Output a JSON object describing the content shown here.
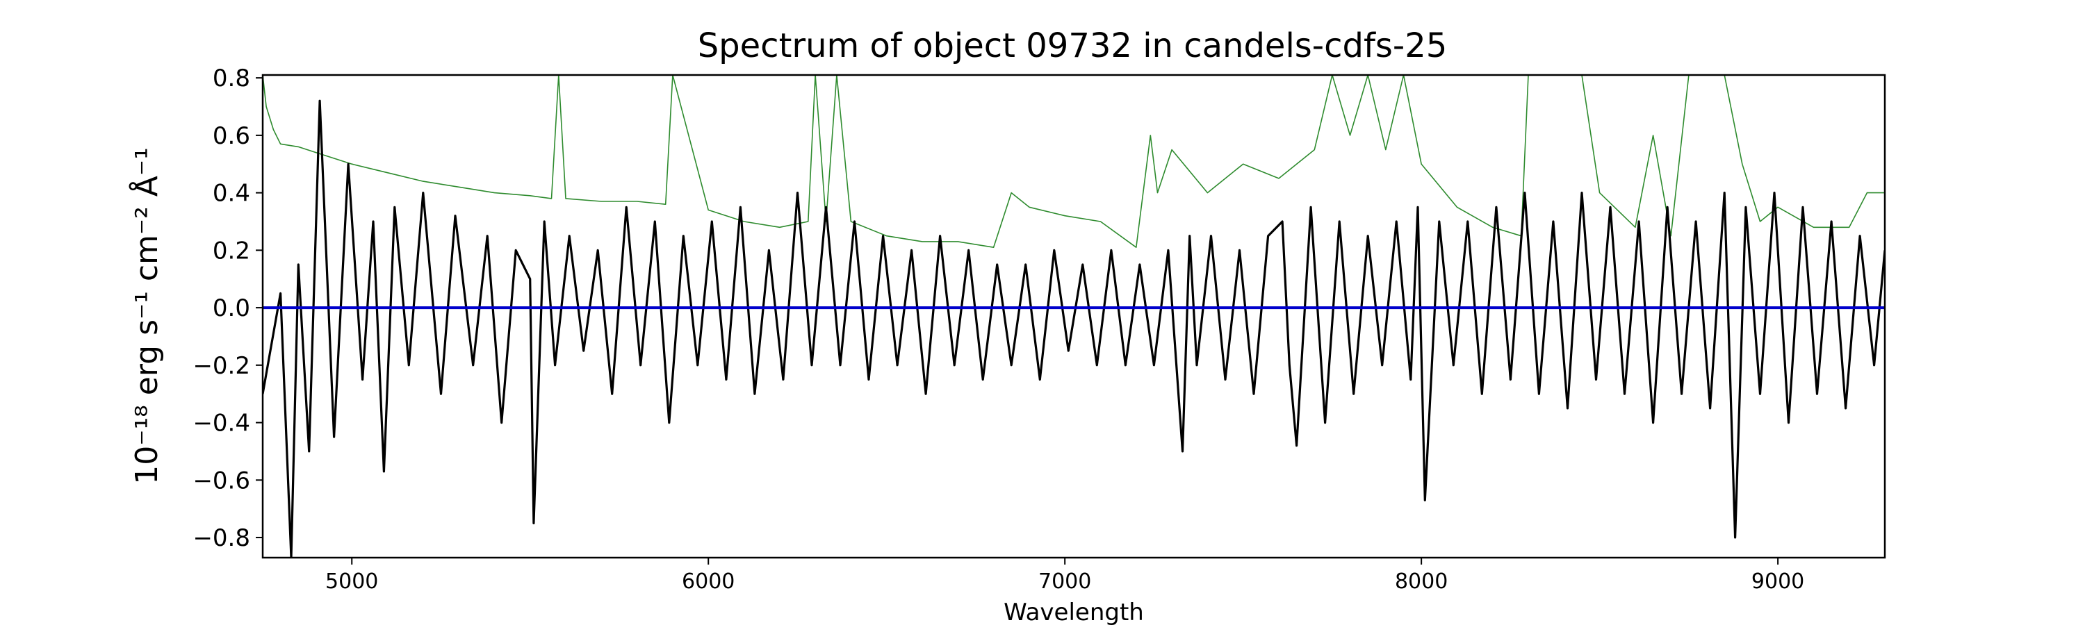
{
  "chart_data": {
    "type": "line",
    "title": "Spectrum of object 09732 in candels-cdfs-25",
    "xlabel": "Wavelength",
    "ylabel": "10⁻¹⁸ erg s⁻¹ cm⁻² Å⁻¹",
    "xlim": [
      4750,
      9300
    ],
    "ylim": [
      -0.87,
      0.81
    ],
    "xticks": [
      5000,
      6000,
      7000,
      8000,
      9000
    ],
    "yticks": [
      -0.8,
      -0.6,
      -0.4,
      -0.2,
      0.0,
      0.2,
      0.4,
      0.6,
      0.8
    ],
    "yticklabels": [
      "−0.8",
      "−0.6",
      "−0.4",
      "−0.2",
      "0.0",
      "0.2",
      "0.4",
      "0.6",
      "0.8"
    ],
    "grid": false,
    "legend": "none",
    "colors": {
      "flux": "#000000",
      "error": "#2e8b2e",
      "zero": "#0000cc"
    },
    "series": [
      {
        "role": "flux",
        "x": [
          4750,
          4800,
          4830,
          4850,
          4880,
          4910,
          4950,
          4990,
          5030,
          5060,
          5090,
          5120,
          5160,
          5200,
          5250,
          5290,
          5340,
          5380,
          5420,
          5460,
          5500,
          5510,
          5540,
          5570,
          5610,
          5650,
          5690,
          5730,
          5770,
          5810,
          5850,
          5890,
          5930,
          5970,
          6010,
          6050,
          6090,
          6130,
          6170,
          6210,
          6250,
          6290,
          6330,
          6370,
          6410,
          6450,
          6490,
          6530,
          6570,
          6610,
          6650,
          6690,
          6730,
          6770,
          6810,
          6850,
          6890,
          6930,
          6970,
          7010,
          7050,
          7090,
          7130,
          7170,
          7210,
          7250,
          7290,
          7330,
          7350,
          7370,
          7410,
          7450,
          7490,
          7530,
          7570,
          7610,
          7630,
          7650,
          7690,
          7730,
          7770,
          7810,
          7850,
          7890,
          7930,
          7970,
          7990,
          8010,
          8050,
          8090,
          8130,
          8170,
          8210,
          8250,
          8290,
          8330,
          8370,
          8410,
          8450,
          8490,
          8530,
          8570,
          8610,
          8650,
          8690,
          8730,
          8770,
          8810,
          8850,
          8880,
          8910,
          8950,
          8990,
          9030,
          9070,
          9110,
          9150,
          9190,
          9230,
          9270,
          9300
        ],
        "y": [
          -0.3,
          0.05,
          -0.87,
          0.15,
          -0.5,
          0.72,
          -0.45,
          0.5,
          -0.25,
          0.3,
          -0.57,
          0.35,
          -0.2,
          0.4,
          -0.3,
          0.32,
          -0.2,
          0.25,
          -0.4,
          0.2,
          0.1,
          -0.75,
          0.3,
          -0.2,
          0.25,
          -0.15,
          0.2,
          -0.3,
          0.35,
          -0.2,
          0.3,
          -0.4,
          0.25,
          -0.2,
          0.3,
          -0.25,
          0.35,
          -0.3,
          0.2,
          -0.25,
          0.4,
          -0.2,
          0.35,
          -0.2,
          0.3,
          -0.25,
          0.25,
          -0.2,
          0.2,
          -0.3,
          0.25,
          -0.2,
          0.2,
          -0.25,
          0.15,
          -0.2,
          0.15,
          -0.25,
          0.2,
          -0.15,
          0.15,
          -0.2,
          0.2,
          -0.2,
          0.15,
          -0.2,
          0.2,
          -0.5,
          0.25,
          -0.2,
          0.25,
          -0.25,
          0.2,
          -0.3,
          0.25,
          0.3,
          -0.2,
          -0.48,
          0.35,
          -0.4,
          0.3,
          -0.3,
          0.25,
          -0.2,
          0.3,
          -0.25,
          0.35,
          -0.67,
          0.3,
          -0.2,
          0.3,
          -0.3,
          0.35,
          -0.25,
          0.4,
          -0.3,
          0.3,
          -0.35,
          0.4,
          -0.25,
          0.35,
          -0.3,
          0.3,
          -0.4,
          0.35,
          -0.3,
          0.3,
          -0.35,
          0.4,
          -0.8,
          0.35,
          -0.3,
          0.4,
          -0.4,
          0.35,
          -0.3,
          0.3,
          -0.35,
          0.25,
          -0.2,
          0.2
        ]
      },
      {
        "role": "error",
        "x": [
          4750,
          4760,
          4780,
          4800,
          4850,
          4900,
          4950,
          5000,
          5100,
          5200,
          5300,
          5400,
          5500,
          5560,
          5580,
          5600,
          5700,
          5800,
          5880,
          5900,
          6000,
          6100,
          6200,
          6280,
          6300,
          6330,
          6360,
          6400,
          6500,
          6600,
          6700,
          6800,
          6850,
          6900,
          7000,
          7100,
          7200,
          7240,
          7260,
          7300,
          7400,
          7500,
          7600,
          7700,
          7750,
          7800,
          7850,
          7900,
          7950,
          8000,
          8100,
          8200,
          8280,
          8300,
          8350,
          8400,
          8450,
          8500,
          8600,
          8650,
          8700,
          8750,
          8800,
          8850,
          8900,
          8950,
          9000,
          9100,
          9200,
          9250,
          9300
        ],
        "y": [
          0.81,
          0.7,
          0.62,
          0.57,
          0.56,
          0.54,
          0.52,
          0.5,
          0.47,
          0.44,
          0.42,
          0.4,
          0.39,
          0.38,
          0.81,
          0.38,
          0.37,
          0.37,
          0.36,
          0.81,
          0.34,
          0.3,
          0.28,
          0.3,
          0.81,
          0.3,
          0.81,
          0.3,
          0.25,
          0.23,
          0.23,
          0.21,
          0.4,
          0.35,
          0.32,
          0.3,
          0.21,
          0.6,
          0.4,
          0.55,
          0.4,
          0.5,
          0.45,
          0.55,
          0.81,
          0.6,
          0.81,
          0.55,
          0.81,
          0.5,
          0.35,
          0.28,
          0.25,
          0.81,
          0.81,
          0.81,
          0.81,
          0.4,
          0.28,
          0.6,
          0.25,
          0.81,
          0.81,
          0.81,
          0.5,
          0.3,
          0.35,
          0.28,
          0.28,
          0.4,
          0.4
        ]
      },
      {
        "role": "zero",
        "x": [
          4750,
          9300
        ],
        "y": [
          0.0,
          0.0
        ]
      }
    ]
  }
}
